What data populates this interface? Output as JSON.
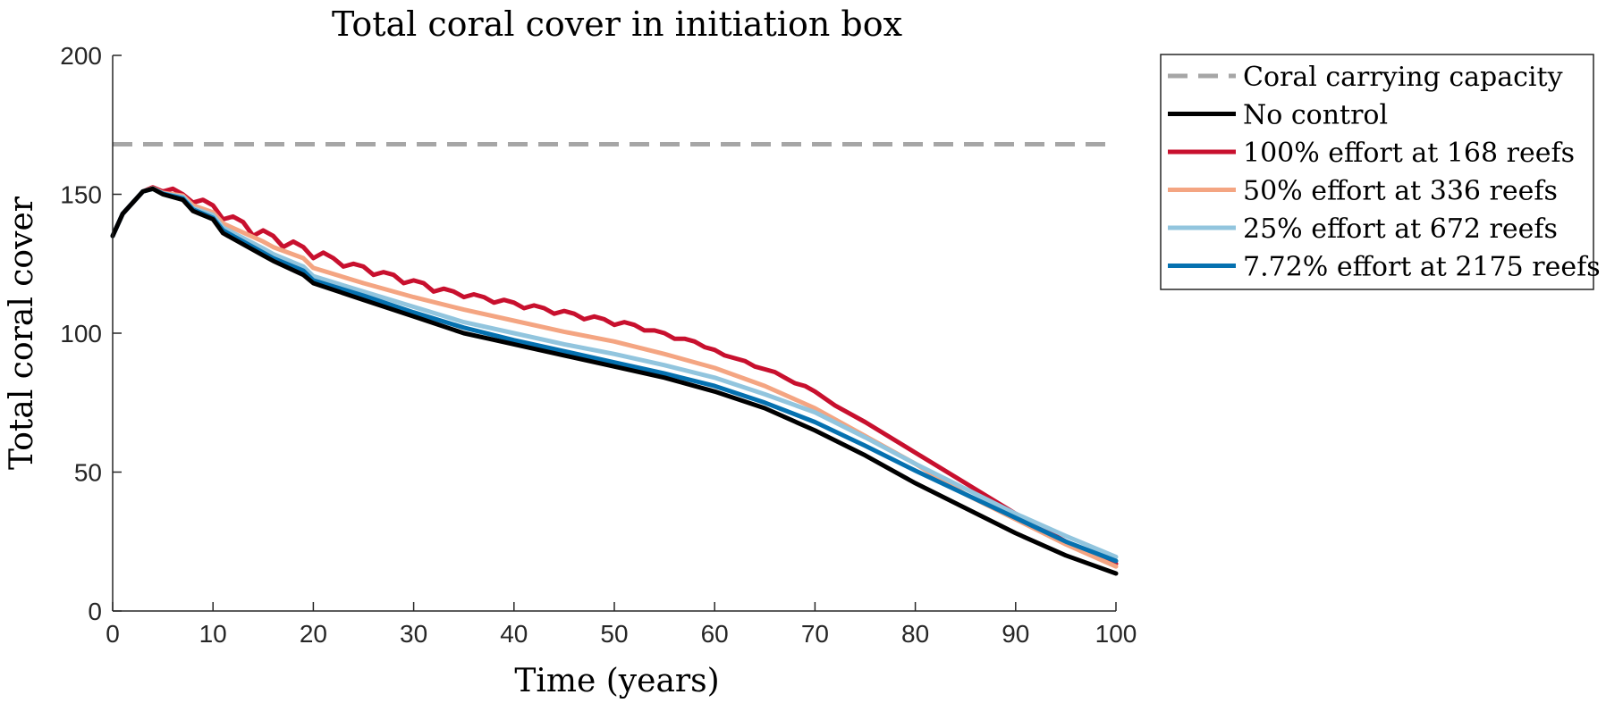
{
  "chart_data": {
    "type": "line",
    "title": "Total coral cover in initiation box",
    "xlabel": "Time (years)",
    "ylabel": "Total coral cover",
    "xlim": [
      0,
      100
    ],
    "ylim": [
      0,
      200
    ],
    "xticks": [
      0,
      10,
      20,
      30,
      40,
      50,
      60,
      70,
      80,
      90,
      100
    ],
    "yticks": [
      0,
      50,
      100,
      150,
      200
    ],
    "grid": false,
    "legend_position": "outside-top-right",
    "reference_line": {
      "name": "Coral carrying capacity",
      "y": 168,
      "color": "#a6a6a6",
      "style": "dashed"
    },
    "series": [
      {
        "name": "No control",
        "color": "#000000",
        "x": [
          0,
          1,
          3,
          4,
          5,
          7,
          8,
          10,
          11,
          15,
          16,
          19,
          20,
          25,
          30,
          35,
          40,
          45,
          50,
          55,
          60,
          65,
          70,
          75,
          80,
          85,
          90,
          95,
          100
        ],
        "y": [
          135,
          143,
          151,
          152,
          150,
          148,
          144,
          141,
          136,
          128,
          126,
          121,
          118,
          112,
          106,
          100,
          96,
          92,
          88,
          84,
          79,
          73,
          65,
          56,
          46,
          37,
          28,
          20,
          13.5
        ]
      },
      {
        "name": "100% effort at 168 reefs",
        "color": "#c8102e",
        "x": [
          0,
          1,
          3,
          4,
          5,
          6,
          7,
          8,
          9,
          10,
          11,
          12,
          13,
          14,
          15,
          16,
          17,
          18,
          19,
          20,
          21,
          22,
          23,
          24,
          25,
          26,
          27,
          28,
          29,
          30,
          31,
          32,
          33,
          34,
          35,
          36,
          37,
          38,
          39,
          40,
          41,
          42,
          43,
          44,
          45,
          46,
          47,
          48,
          49,
          50,
          51,
          52,
          53,
          54,
          55,
          56,
          57,
          58,
          59,
          60,
          61,
          62,
          63,
          64,
          65,
          66,
          67,
          68,
          69,
          70,
          72,
          75,
          80,
          85,
          90,
          95,
          100
        ],
        "y": [
          135,
          143,
          151,
          152.5,
          151,
          152,
          150,
          147,
          148,
          146,
          141,
          142,
          140,
          135,
          137,
          135,
          131,
          133,
          131,
          127,
          129,
          127,
          124,
          125,
          124,
          121,
          122,
          121,
          118,
          119,
          118,
          115,
          116,
          115,
          113,
          114,
          113,
          111,
          112,
          111,
          109,
          110,
          109,
          107,
          108,
          107,
          105,
          106,
          105,
          103,
          104,
          103,
          101,
          101,
          100,
          98,
          98,
          97,
          95,
          94,
          92,
          91,
          90,
          88,
          87,
          86,
          84,
          82,
          81,
          79,
          74,
          68,
          57,
          46,
          35,
          25,
          17
        ]
      },
      {
        "name": "50% effort at 336 reefs",
        "color": "#f4a582",
        "x": [
          0,
          1,
          3,
          4,
          5,
          7,
          8,
          10,
          11,
          15,
          16,
          19,
          20,
          25,
          30,
          35,
          40,
          45,
          50,
          55,
          60,
          65,
          70,
          75,
          80,
          85,
          90,
          95,
          100
        ],
        "y": [
          135,
          143,
          151,
          152.2,
          150.5,
          149.5,
          146,
          143.5,
          139.5,
          133,
          131,
          127,
          123.5,
          118,
          113,
          108.5,
          104.5,
          100.5,
          97,
          92.5,
          87.5,
          81,
          73,
          63,
          53,
          42,
          33,
          24,
          16
        ]
      },
      {
        "name": "25% effort at 672 reefs",
        "color": "#92c5de",
        "x": [
          0,
          1,
          3,
          4,
          5,
          7,
          8,
          10,
          11,
          15,
          16,
          19,
          20,
          25,
          30,
          35,
          40,
          45,
          50,
          55,
          60,
          65,
          70,
          75,
          80,
          85,
          90,
          95,
          100
        ],
        "y": [
          135,
          143,
          151,
          152.1,
          150.3,
          149,
          145,
          142.5,
          138,
          130.5,
          128.5,
          124,
          120.5,
          115,
          109.5,
          104,
          100,
          96,
          92.5,
          88.5,
          84,
          78,
          71.5,
          62.5,
          53,
          44,
          35,
          27,
          19.5
        ]
      },
      {
        "name": "7.72% effort at 2175 reefs",
        "color": "#0571b0",
        "x": [
          0,
          1,
          3,
          4,
          5,
          7,
          8,
          10,
          11,
          15,
          16,
          19,
          20,
          25,
          30,
          35,
          40,
          45,
          50,
          55,
          60,
          65,
          70,
          75,
          80,
          85,
          90,
          95,
          100
        ],
        "y": [
          135,
          143,
          151,
          152,
          150.2,
          148.5,
          144.5,
          141.5,
          137,
          129,
          127,
          122.5,
          119,
          113.5,
          107.5,
          102,
          97.5,
          93.5,
          89.5,
          85.5,
          81,
          75,
          68,
          59.5,
          50.5,
          42,
          33.5,
          25,
          18
        ]
      }
    ]
  }
}
